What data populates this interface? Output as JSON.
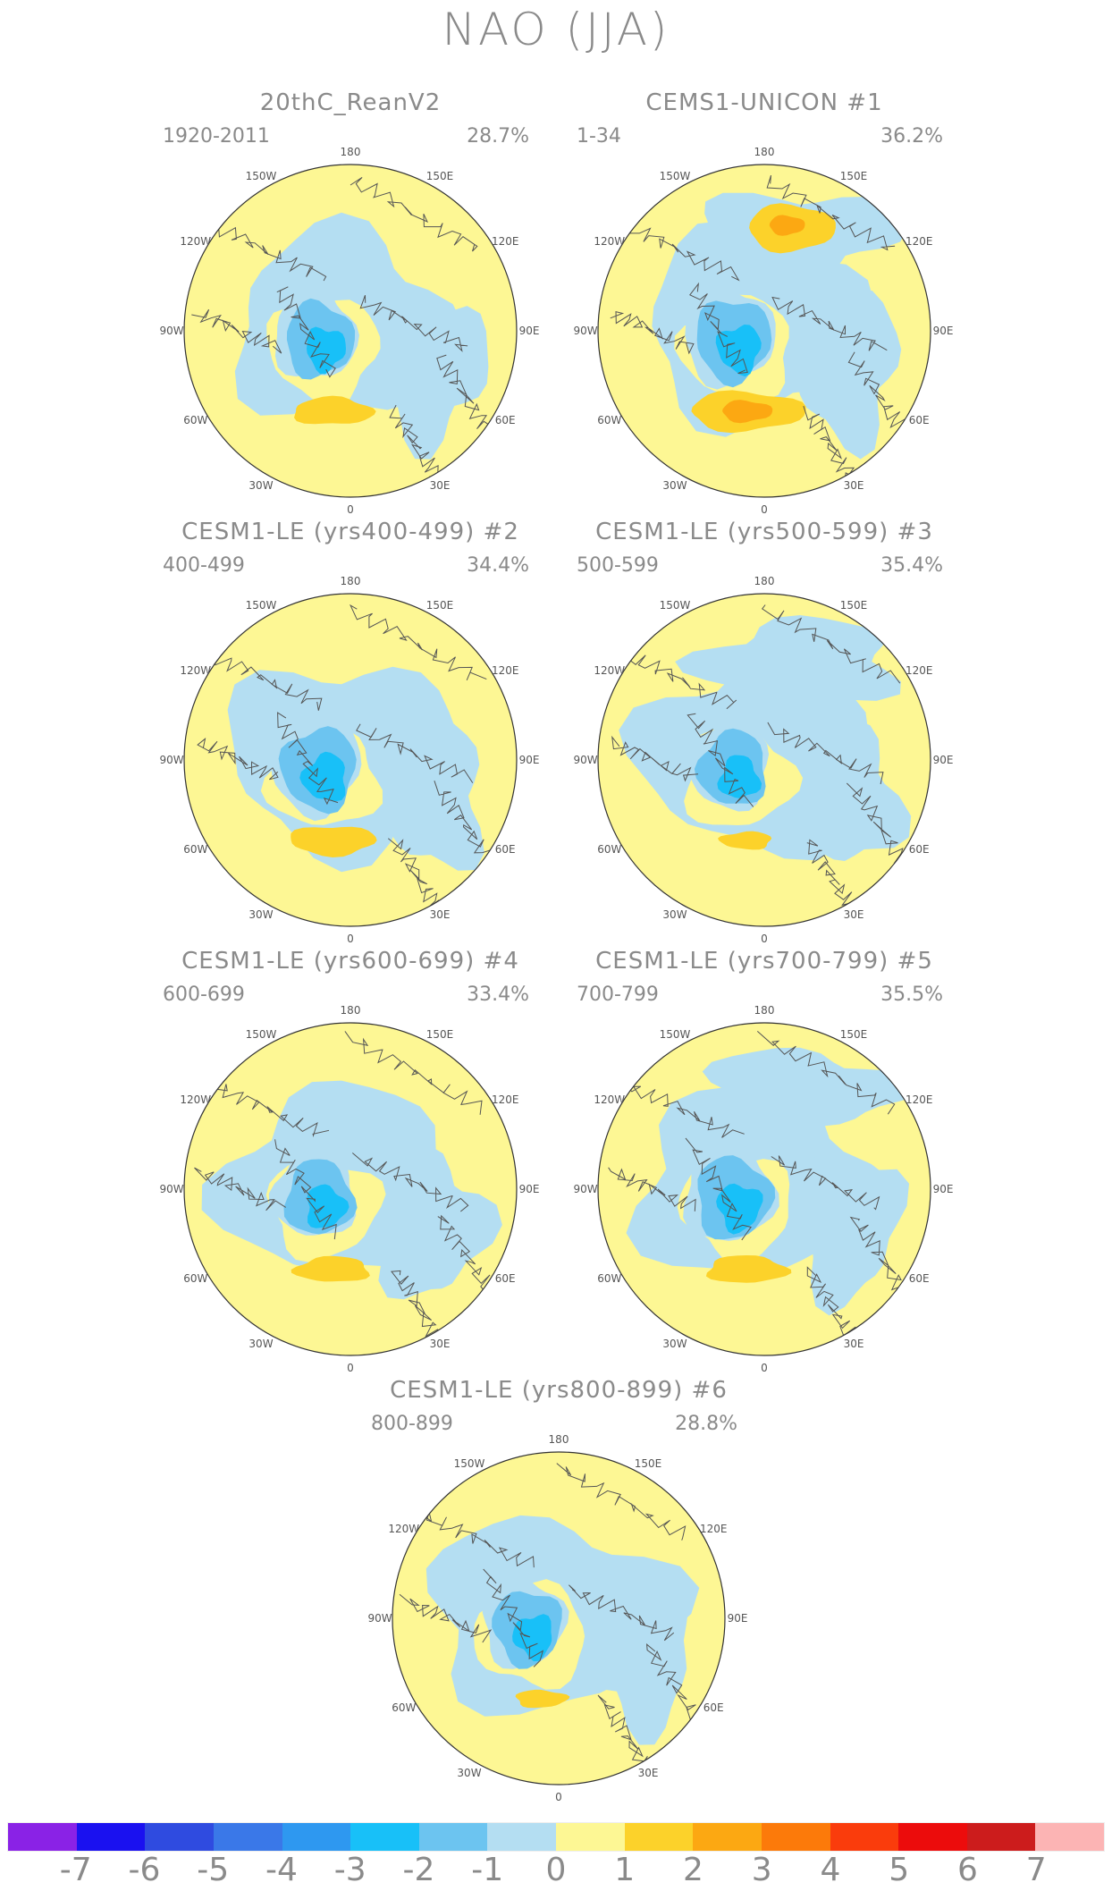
{
  "title": "NAO (JJA)",
  "panels": [
    {
      "title": "20thC_ReanV2",
      "period": "1920-2011",
      "variance": "28.7%",
      "rotation": 0,
      "dipole": [
        1.4,
        1.0
      ],
      "low_str": 1.0
    },
    {
      "title": "CEMS1-UNICON      #1",
      "period": "1-34",
      "variance": "36.2%",
      "rotation": 0,
      "dipole": [
        2.0,
        2.2
      ],
      "low_str": 1.1
    },
    {
      "title": "CESM1-LE (yrs400-499) #2",
      "period": "400-499",
      "variance": "34.4%",
      "rotation": 0,
      "dipole": [
        1.5,
        0.8
      ],
      "low_str": 1.1
    },
    {
      "title": "CESM1-LE (yrs500-599) #3",
      "period": "500-599",
      "variance": "35.4%",
      "rotation": 0,
      "dipole": [
        0.9,
        0.6
      ],
      "low_str": 1.0
    },
    {
      "title": "CESM1-LE (yrs600-699) #4",
      "period": "600-699",
      "variance": "33.4%",
      "rotation": 0,
      "dipole": [
        1.3,
        0.7
      ],
      "low_str": 1.0
    },
    {
      "title": "CESM1-LE (yrs700-799) #5",
      "period": "700-799",
      "variance": "35.5%",
      "rotation": 0,
      "dipole": [
        1.4,
        0.6
      ],
      "low_str": 1.1
    },
    {
      "title": "CESM1-LE (yrs800-899) #6",
      "period": "800-899",
      "variance": "28.8%",
      "rotation": 0,
      "dipole": [
        0.9,
        0.3
      ],
      "low_str": 1.0
    }
  ],
  "lon_labels": [
    "180",
    "150E",
    "120E",
    "90E",
    "60E",
    "30E",
    "0",
    "30W",
    "60W",
    "90W",
    "120W",
    "150W"
  ],
  "colorbar": {
    "colors": [
      "#8a22e6",
      "#1a11f0",
      "#2f4be0",
      "#3a78e8",
      "#2e98f0",
      "#18c0f8",
      "#6cc4f0",
      "#b4def2",
      "#fdf794",
      "#fcd22a",
      "#fca812",
      "#fc7a0a",
      "#fa3c0c",
      "#ec0c0c",
      "#cc1c1c",
      "#fcb4b4"
    ],
    "labels": [
      "-7",
      "-6",
      "-5",
      "-4",
      "-3",
      "-2",
      "-1",
      "0",
      "1",
      "2",
      "3",
      "4",
      "5",
      "6",
      "7"
    ]
  }
}
